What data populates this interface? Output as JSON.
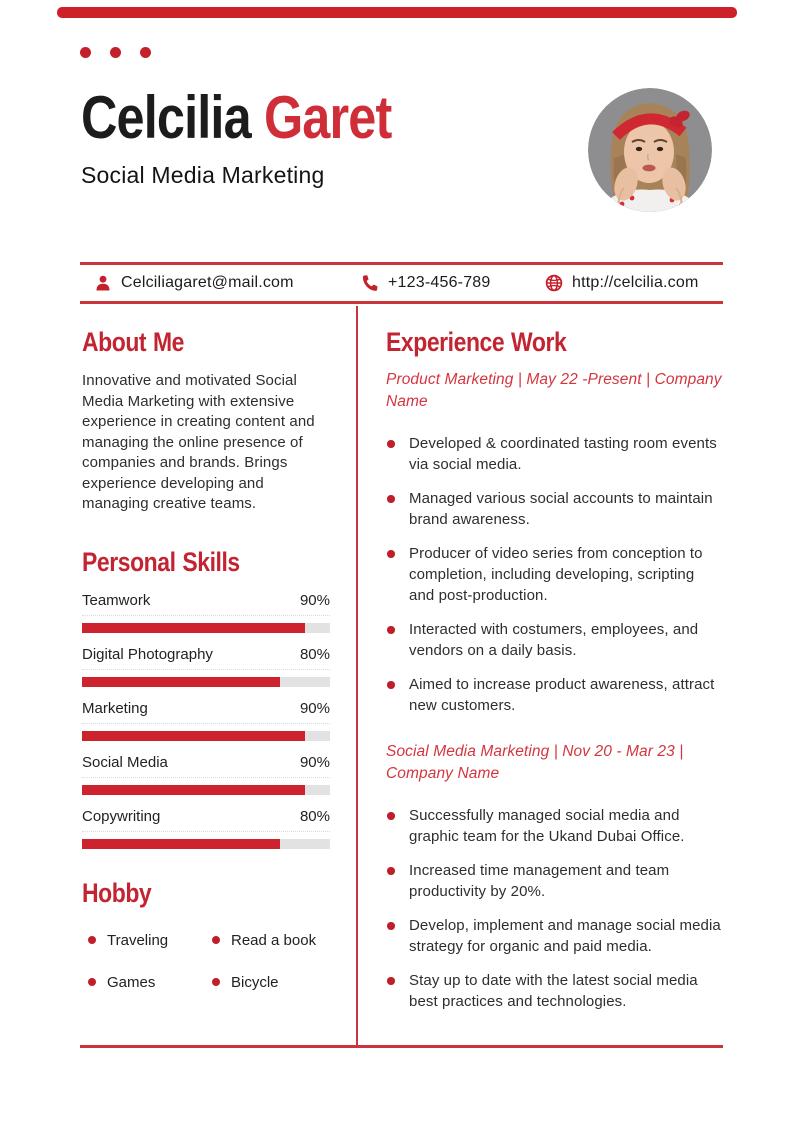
{
  "colors": {
    "accent_red": "#c22531",
    "name_red": "#cf2e38",
    "bar_red": "#cc232e",
    "line_red": "#c9343d",
    "topbar_red": "#ce2029"
  },
  "decor": {
    "topbar": "red-accent-bar",
    "dots": "three-red-dots"
  },
  "header": {
    "first_name": "Celcilia",
    "last_name": "Garet",
    "subtitle": "Social Media Marketing",
    "photo": "portrait-woman-red-headband"
  },
  "contact": {
    "email_icon": "person-icon",
    "email": "Celciliagaret@mail.com",
    "phone_icon": "phone-icon",
    "phone": "+123-456-789",
    "website_icon": "globe-icon",
    "website": "http://celcilia.com"
  },
  "about": {
    "title": "About Me",
    "body": "Innovative and motivated Social Media Marketing with extensive experience in creating content and managing the online presence of companies and brands. Brings experience developing and managing creative teams."
  },
  "skills": {
    "title": "Personal Skills",
    "items": [
      {
        "label": "Teamwork",
        "percent": "90%",
        "value": 90
      },
      {
        "label": "Digital Photography",
        "percent": "80%",
        "value": 80
      },
      {
        "label": "Marketing",
        "percent": "90%",
        "value": 90
      },
      {
        "label": "Social Media",
        "percent": "90%",
        "value": 90
      },
      {
        "label": "Copywriting",
        "percent": "80%",
        "value": 80
      }
    ]
  },
  "hobby": {
    "title": "Hobby",
    "items": [
      "Traveling",
      "Read a book",
      "Games",
      "Bicycle"
    ]
  },
  "experience": {
    "title": "Experience Work",
    "jobs": [
      {
        "heading": "Product Marketing | May 22 -Present | Company Name",
        "bullets": [
          "Developed & coordinated tasting room events via social media.",
          "Managed various social accounts to maintain brand awareness.",
          "Producer of video series from conception to completion, including developing, scripting and post-production.",
          "Interacted with costumers, employees, and vendors on a daily basis.",
          "Aimed to increase product awareness, attract new customers."
        ]
      },
      {
        "heading": "Social Media Marketing | Nov 20 - Mar 23 | Company Name",
        "bullets": [
          "Successfully managed social media and graphic team for the Ukand Dubai Office.",
          "Increased time management and team productivity by 20%.",
          "Develop, implement and manage social media strategy for organic and paid media.",
          "Stay up to date with the latest social media best practices and technologies."
        ]
      }
    ]
  }
}
